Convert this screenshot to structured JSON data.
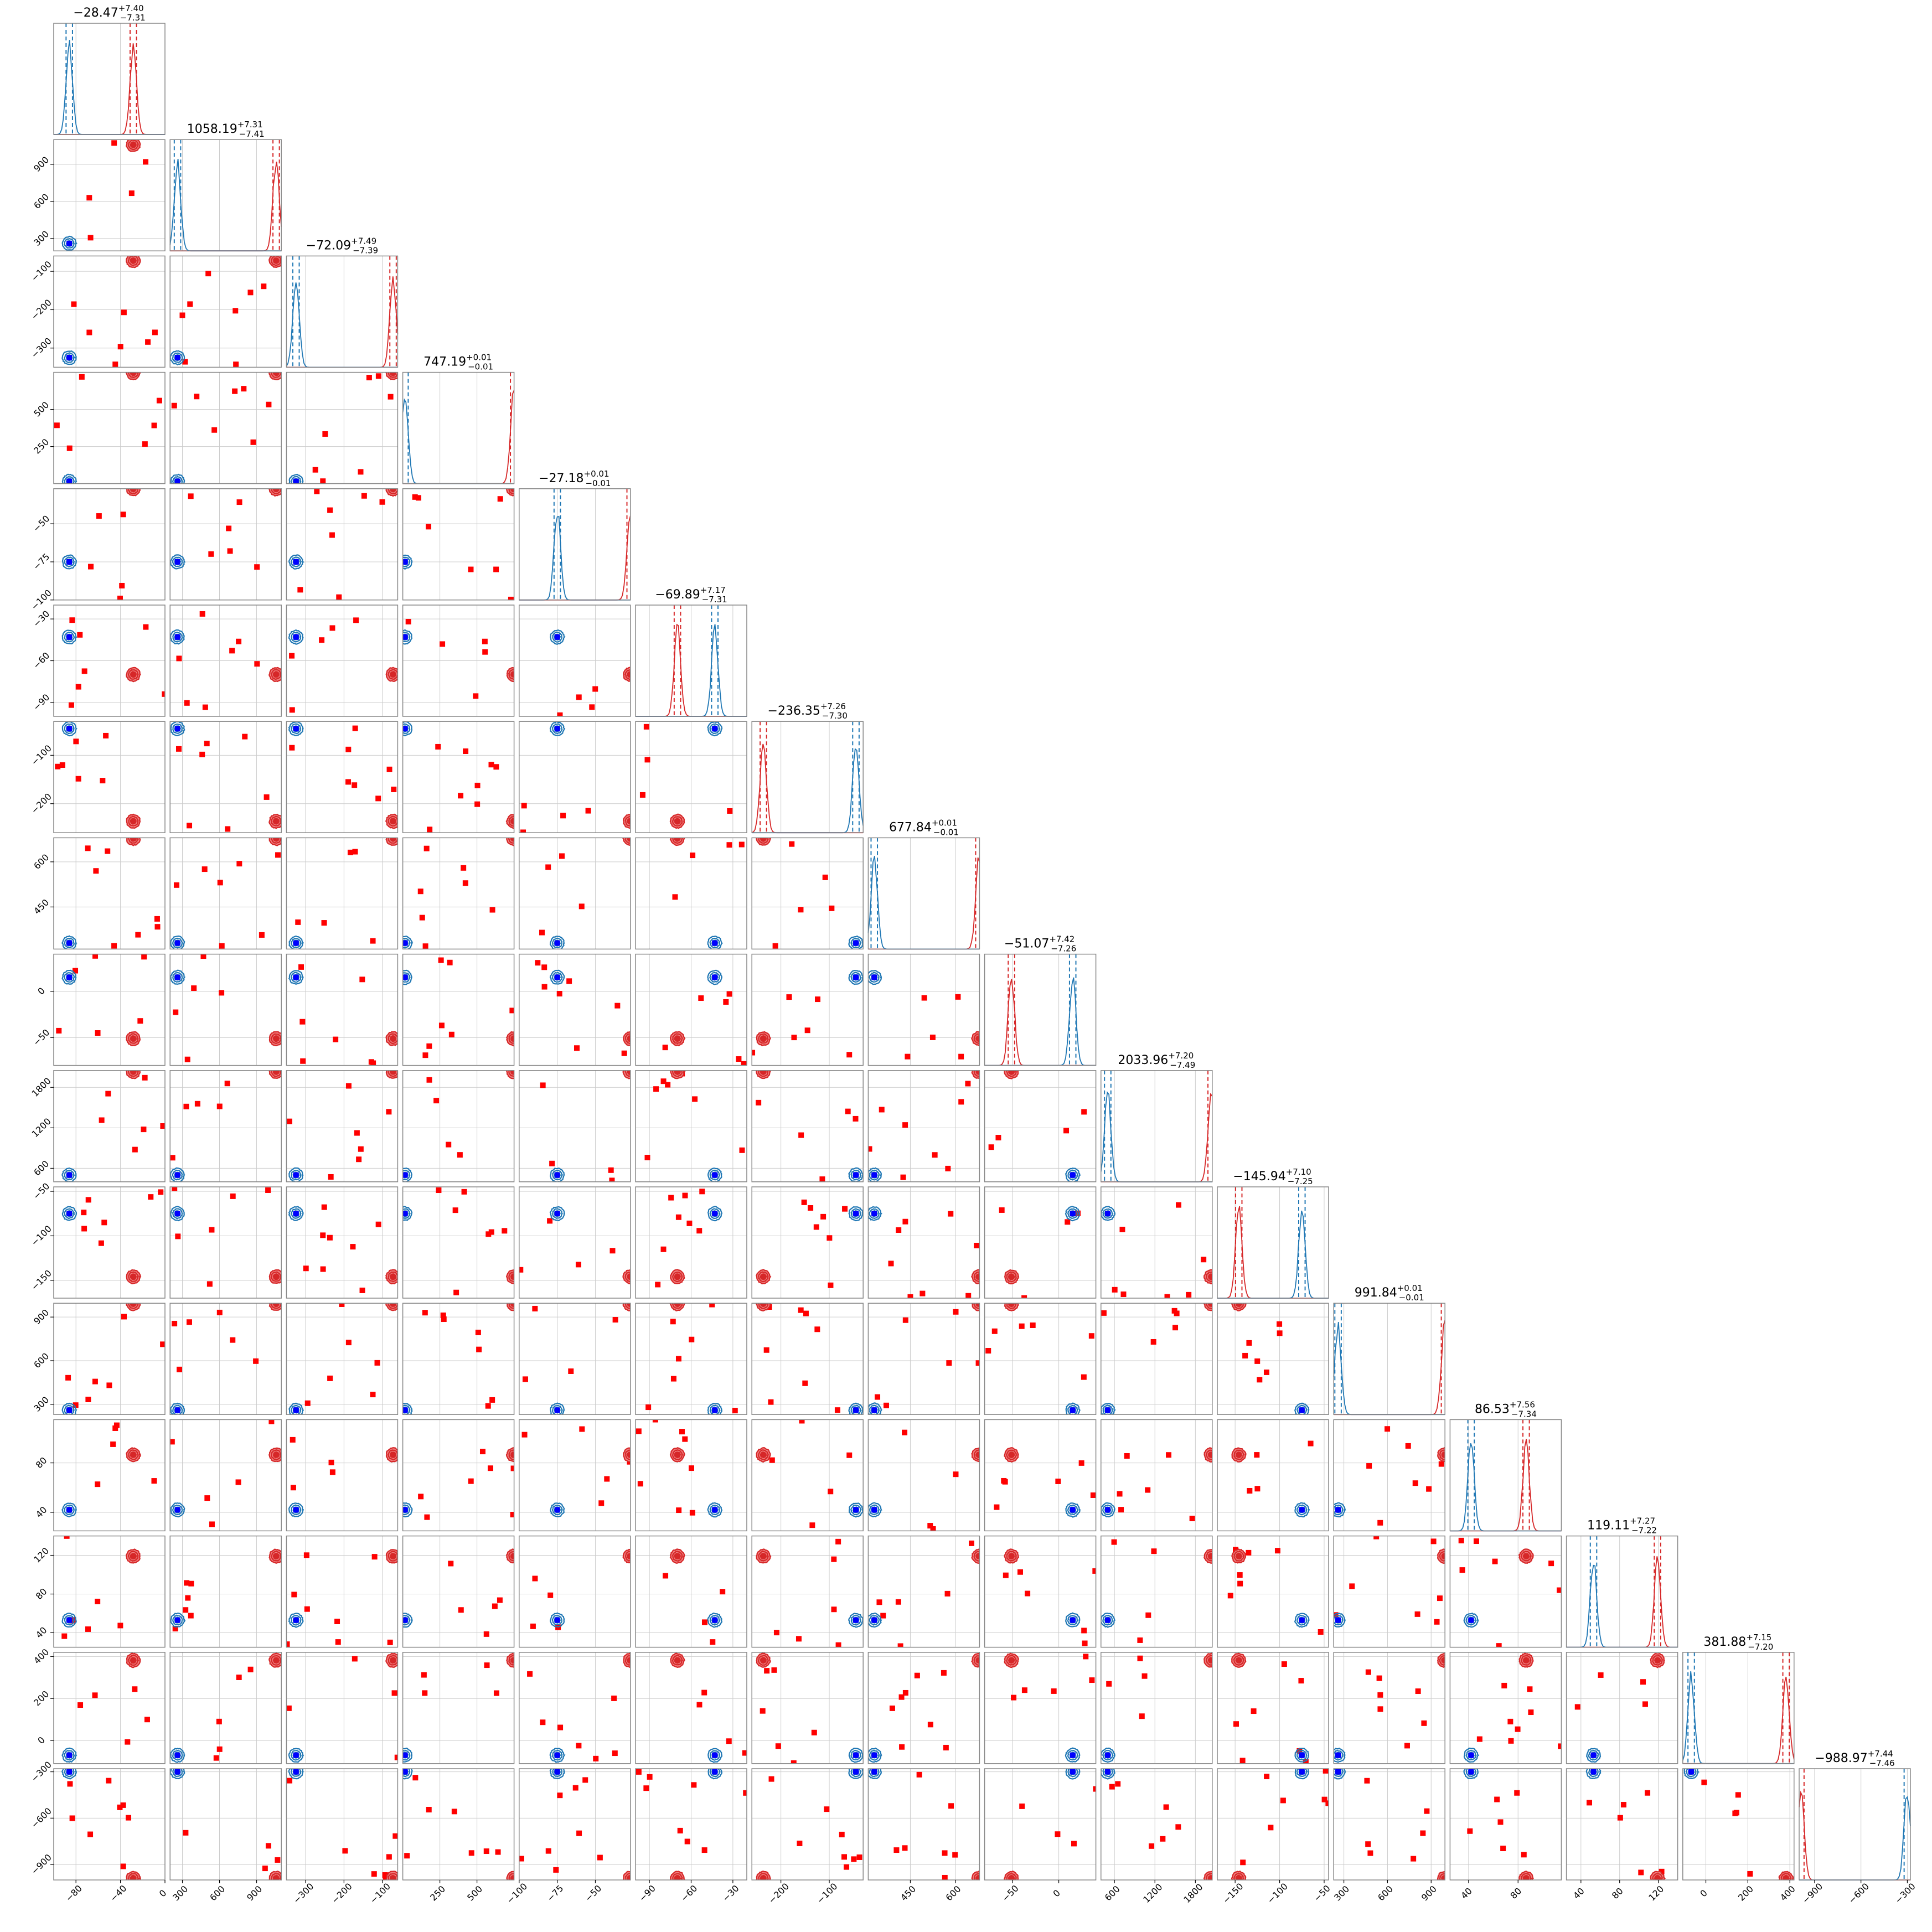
{
  "chart_data": {
    "type": "scatter",
    "subtype": "corner-plot",
    "n_params": 16,
    "grid": true,
    "colors": {
      "red_set": "#d62728",
      "red_fill": "#f08080",
      "blue_set": "#1f77b4",
      "blue_marker": "#0000ff",
      "scatter_marker": "#ff0000",
      "grid": "#cccccc",
      "frame": "#888888"
    },
    "params": [
      {
        "title": "−28.47",
        "sup": "+7.40",
        "sub": "−7.31",
        "range": [
          -100,
          0
        ],
        "ticks": [
          -80,
          -40,
          0
        ],
        "tick_labels": [
          "−80",
          "−40",
          "0"
        ],
        "red": -28.47,
        "blue": -86
      },
      {
        "title": "1058.19",
        "sup": "+7.31",
        "sub": "−7.41",
        "range": [
          200,
          1100
        ],
        "ticks": [
          300,
          600,
          900
        ],
        "tick_labels": [
          "300",
          "600",
          "900"
        ],
        "red": 1058.19,
        "blue": 260
      },
      {
        "title": "−72.09",
        "sup": "+7.49",
        "sub": "−7.39",
        "range": [
          -350,
          -60
        ],
        "ticks": [
          -300,
          -200,
          -100
        ],
        "tick_labels": [
          "−300",
          "−200",
          "−100"
        ],
        "red": -72.09,
        "blue": -325
      },
      {
        "title": "747.19",
        "sup": "+0.01",
        "sub": "−0.01",
        "range": [
          0,
          750
        ],
        "ticks": [
          250,
          500
        ],
        "tick_labels": [
          "250",
          "500"
        ],
        "red": 747.19,
        "blue": 15
      },
      {
        "title": "−27.18",
        "sup": "+0.01",
        "sub": "−0.01",
        "range": [
          -100,
          -27
        ],
        "ticks": [
          -100,
          -75,
          -50
        ],
        "tick_labels": [
          "−100",
          "−75",
          "−50"
        ],
        "red": -27.18,
        "blue": -75
      },
      {
        "title": "−69.89",
        "sup": "+7.17",
        "sub": "−7.31",
        "range": [
          -100,
          -20
        ],
        "ticks": [
          -90,
          -60,
          -30
        ],
        "tick_labels": [
          "−90",
          "−60",
          "−30"
        ],
        "red": -69.89,
        "blue": -43
      },
      {
        "title": "−236.35",
        "sup": "+7.26",
        "sub": "−7.30",
        "range": [
          -260,
          -30
        ],
        "ticks": [
          -200,
          -100
        ],
        "tick_labels": [
          "−200",
          "−100"
        ],
        "red": -236.35,
        "blue": -45
      },
      {
        "title": "677.84",
        "sup": "+0.01",
        "sub": "−0.01",
        "range": [
          310,
          680
        ],
        "ticks": [
          450,
          600
        ],
        "tick_labels": [
          "450",
          "600"
        ],
        "red": 677.84,
        "blue": 330
      },
      {
        "title": "−51.07",
        "sup": "+7.42",
        "sub": "−7.26",
        "range": [
          -80,
          40
        ],
        "ticks": [
          -50,
          0
        ],
        "tick_labels": [
          "−50",
          "0"
        ],
        "red": -51.07,
        "blue": 15
      },
      {
        "title": "2033.96",
        "sup": "+7.20",
        "sub": "−7.49",
        "range": [
          400,
          2050
        ],
        "ticks": [
          600,
          1200,
          1800
        ],
        "tick_labels": [
          "600",
          "1200",
          "1800"
        ],
        "red": 2033.96,
        "blue": 500
      },
      {
        "title": "−145.94",
        "sup": "+7.10",
        "sub": "−7.25",
        "range": [
          -170,
          -45
        ],
        "ticks": [
          -150,
          -100,
          -50
        ],
        "tick_labels": [
          "−150",
          "−100",
          "−50"
        ],
        "red": -145.94,
        "blue": -75
      },
      {
        "title": "991.84",
        "sup": "+0.01",
        "sub": "−0.01",
        "range": [
          230,
          995
        ],
        "ticks": [
          300,
          600,
          900
        ],
        "tick_labels": [
          "300",
          "600",
          "900"
        ],
        "red": 991.84,
        "blue": 260
      },
      {
        "title": "86.53",
        "sup": "+7.56",
        "sub": "−7.34",
        "range": [
          25,
          115
        ],
        "ticks": [
          40,
          80
        ],
        "tick_labels": [
          "40",
          "80"
        ],
        "red": 86.53,
        "blue": 42
      },
      {
        "title": "119.11",
        "sup": "+7.27",
        "sub": "−7.22",
        "range": [
          25,
          140
        ],
        "ticks": [
          40,
          80,
          120
        ],
        "tick_labels": [
          "40",
          "80",
          "120"
        ],
        "red": 119.11,
        "blue": 53
      },
      {
        "title": "381.88",
        "sup": "+7.15",
        "sub": "−7.20",
        "range": [
          -110,
          420
        ],
        "ticks": [
          0,
          200,
          400
        ],
        "tick_labels": [
          "0",
          "200",
          "400"
        ],
        "red": 381.88,
        "blue": -70
      },
      {
        "title": "−988.97",
        "sup": "+7.44",
        "sub": "−7.46",
        "range": [
          -1000,
          -280
        ],
        "ticks": [
          -900,
          -600,
          -300
        ],
        "tick_labels": [
          "−900",
          "−600",
          "−300"
        ],
        "red": -988.97,
        "blue": -300
      }
    ]
  }
}
